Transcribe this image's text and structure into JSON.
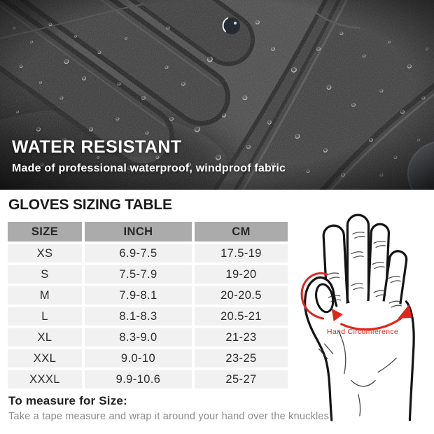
{
  "hero": {
    "title": "WATER RESISTANT",
    "subtitle": "Made of professional waterproof, windproof fabric"
  },
  "sizing": {
    "heading": "GLOVES SIZING TABLE",
    "table": {
      "columns": [
        "SIZE",
        "INCH",
        "CM"
      ],
      "rows": [
        [
          "XS",
          "6.9-7.5",
          "17.5-19"
        ],
        [
          "S",
          "7.5-7.9",
          "19-20"
        ],
        [
          "M",
          "7.9-8.1",
          "20-20.5"
        ],
        [
          "L",
          "8.1-8.3",
          "20.5-21"
        ],
        [
          "XL",
          "8.3-9.0",
          "21-23"
        ],
        [
          "XXL",
          "9.0-10",
          "23-25"
        ],
        [
          "XXXL",
          "9.9-10.6",
          "25-27"
        ]
      ]
    },
    "hand_illustration": {
      "label": "Hand Circumference"
    }
  },
  "measure": {
    "heading": "To measure for Size:",
    "body": "Take a tape measure and wrap it around your hand over the knuckles."
  },
  "colors": {
    "accent_red": "#e0261c",
    "table_header_bg": "#ababab",
    "table_row_bg": "#f1f1f1"
  }
}
